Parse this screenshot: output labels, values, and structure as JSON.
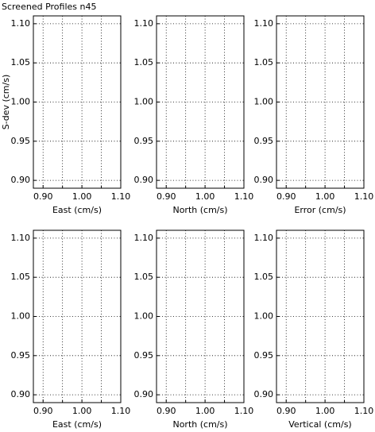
{
  "title": "Screened Profiles n45",
  "chart_data": [
    {
      "type": "line",
      "xlabel": "East (cm/s)",
      "ylabel": "S-dev (cm/s)",
      "series": [],
      "grid": true,
      "xlim": [
        0.875,
        1.1
      ],
      "ylim": [
        0.89,
        1.11
      ],
      "xticks": [
        {
          "value": 0.9,
          "label": "0.90"
        },
        {
          "value": 1.0,
          "label": "1.00"
        },
        {
          "value": 1.1,
          "label": "1.10"
        }
      ],
      "xminor_ticks": [
        0.95,
        1.05
      ],
      "yticks": [
        {
          "value": 0.9,
          "label": "0.90"
        },
        {
          "value": 0.95,
          "label": "0.95"
        },
        {
          "value": 1.0,
          "label": "1.00"
        },
        {
          "value": 1.05,
          "label": "1.05"
        },
        {
          "value": 1.1,
          "label": "1.10"
        }
      ]
    },
    {
      "type": "line",
      "xlabel": "North (cm/s)",
      "series": [],
      "grid": true,
      "xlim": [
        0.875,
        1.1
      ],
      "ylim": [
        0.89,
        1.11
      ],
      "xticks": [
        {
          "value": 0.9,
          "label": "0.90"
        },
        {
          "value": 1.0,
          "label": "1.00"
        },
        {
          "value": 1.1,
          "label": "1.10"
        }
      ],
      "xminor_ticks": [
        0.95,
        1.05
      ],
      "yticks": [
        {
          "value": 0.9,
          "label": "0.90"
        },
        {
          "value": 0.95,
          "label": "0.95"
        },
        {
          "value": 1.0,
          "label": "1.00"
        },
        {
          "value": 1.05,
          "label": "1.05"
        },
        {
          "value": 1.1,
          "label": "1.10"
        }
      ]
    },
    {
      "type": "line",
      "xlabel": "Error (cm/s)",
      "series": [],
      "grid": true,
      "xlim": [
        0.875,
        1.1
      ],
      "ylim": [
        0.89,
        1.11
      ],
      "xticks": [
        {
          "value": 0.9,
          "label": "0.90"
        },
        {
          "value": 1.0,
          "label": "1.00"
        },
        {
          "value": 1.1,
          "label": "1.10"
        }
      ],
      "xminor_ticks": [
        0.95,
        1.05
      ],
      "yticks": [
        {
          "value": 0.9,
          "label": "0.90"
        },
        {
          "value": 0.95,
          "label": "0.95"
        },
        {
          "value": 1.0,
          "label": "1.00"
        },
        {
          "value": 1.05,
          "label": "1.05"
        },
        {
          "value": 1.1,
          "label": "1.10"
        }
      ]
    },
    {
      "type": "line",
      "xlabel": "East (cm/s)",
      "series": [],
      "grid": true,
      "xlim": [
        0.875,
        1.1
      ],
      "ylim": [
        0.89,
        1.11
      ],
      "xticks": [
        {
          "value": 0.9,
          "label": "0.90"
        },
        {
          "value": 1.0,
          "label": "1.00"
        },
        {
          "value": 1.1,
          "label": "1.10"
        }
      ],
      "xminor_ticks": [
        0.95,
        1.05
      ],
      "yticks": [
        {
          "value": 0.9,
          "label": "0.90"
        },
        {
          "value": 0.95,
          "label": "0.95"
        },
        {
          "value": 1.0,
          "label": "1.00"
        },
        {
          "value": 1.05,
          "label": "1.05"
        },
        {
          "value": 1.1,
          "label": "1.10"
        }
      ]
    },
    {
      "type": "line",
      "xlabel": "North (cm/s)",
      "series": [],
      "grid": true,
      "xlim": [
        0.875,
        1.1
      ],
      "ylim": [
        0.89,
        1.11
      ],
      "xticks": [
        {
          "value": 0.9,
          "label": "0.90"
        },
        {
          "value": 1.0,
          "label": "1.00"
        },
        {
          "value": 1.1,
          "label": "1.10"
        }
      ],
      "xminor_ticks": [
        0.95,
        1.05
      ],
      "yticks": [
        {
          "value": 0.9,
          "label": "0.90"
        },
        {
          "value": 0.95,
          "label": "0.95"
        },
        {
          "value": 1.0,
          "label": "1.00"
        },
        {
          "value": 1.05,
          "label": "1.05"
        },
        {
          "value": 1.1,
          "label": "1.10"
        }
      ]
    },
    {
      "type": "line",
      "xlabel": "Vertical (cm/s)",
      "series": [],
      "grid": true,
      "xlim": [
        0.875,
        1.1
      ],
      "ylim": [
        0.89,
        1.11
      ],
      "xticks": [
        {
          "value": 0.9,
          "label": "0.90"
        },
        {
          "value": 1.0,
          "label": "1.00"
        },
        {
          "value": 1.1,
          "label": "1.10"
        }
      ],
      "xminor_ticks": [
        0.95,
        1.05
      ],
      "yticks": [
        {
          "value": 0.9,
          "label": "0.90"
        },
        {
          "value": 0.95,
          "label": "0.95"
        },
        {
          "value": 1.0,
          "label": "1.00"
        },
        {
          "value": 1.05,
          "label": "1.05"
        },
        {
          "value": 1.1,
          "label": "1.10"
        }
      ]
    }
  ]
}
